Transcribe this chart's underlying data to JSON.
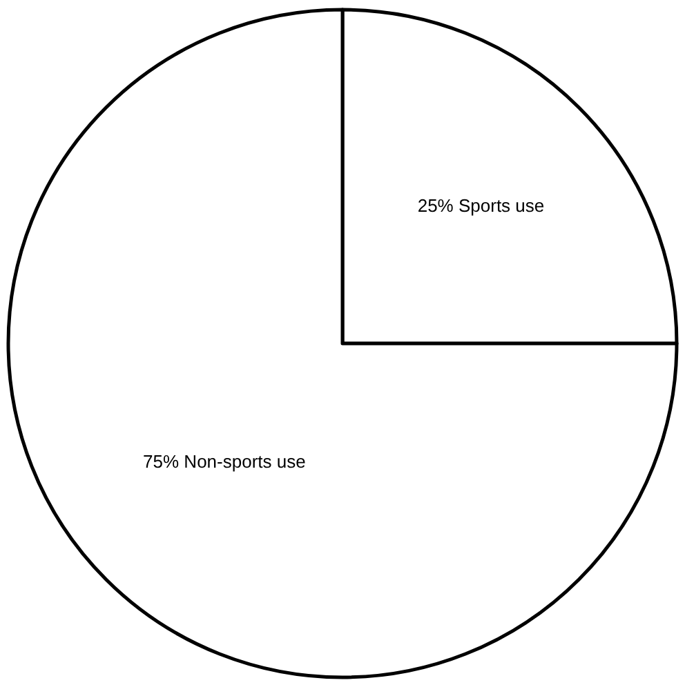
{
  "chart_data": {
    "type": "pie",
    "categories": [
      "Sports use",
      "Non-sports use"
    ],
    "values": [
      25,
      75
    ],
    "value_labels": [
      "25%",
      "75%"
    ],
    "colors": [
      "#ffffff",
      "#ffffff"
    ],
    "legend": false
  }
}
